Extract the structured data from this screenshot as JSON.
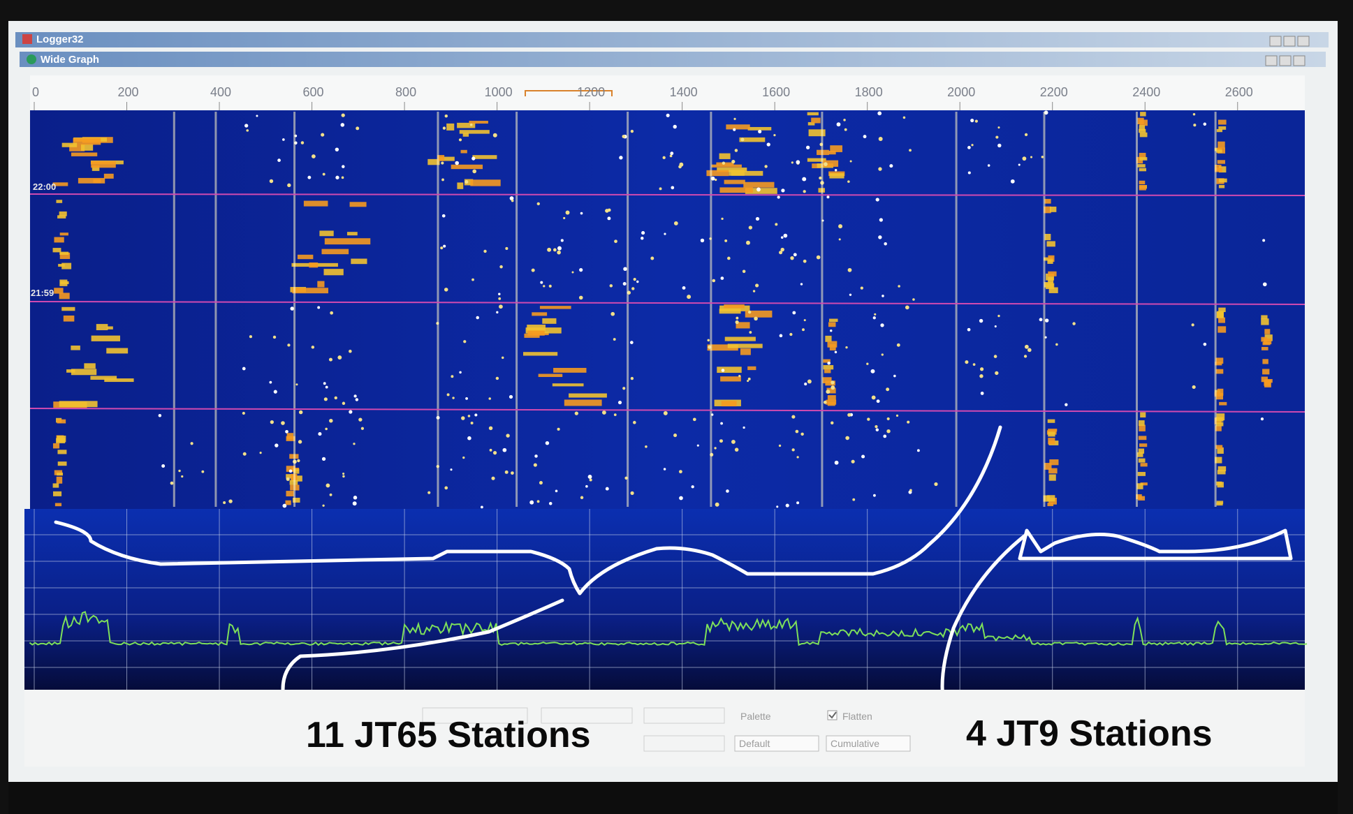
{
  "window": {
    "app_title": "Logger32",
    "graph_title": "Wide Graph"
  },
  "frequency_scale": {
    "ticks": [
      0,
      200,
      400,
      600,
      800,
      1000,
      1200,
      1400,
      1600,
      1800,
      2000,
      2200,
      2400,
      2600
    ]
  },
  "waterfall": {
    "time_labels": [
      "22:00",
      "21:59"
    ]
  },
  "controls": {
    "palette_label": "Palette",
    "flatten_label": "Flatten",
    "palette_value": "Default",
    "mode_value": "Cumulative"
  },
  "annotations": {
    "left": "11 JT65 Stations",
    "right": "4 JT9 Stations"
  }
}
